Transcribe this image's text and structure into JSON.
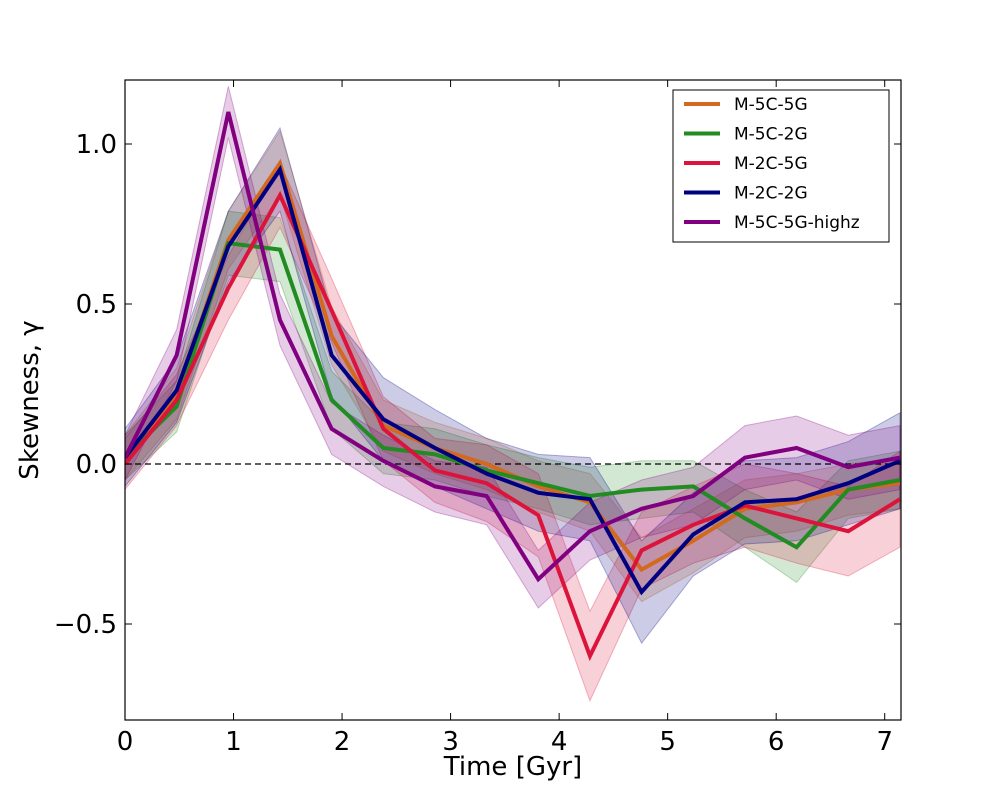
{
  "chart_data": {
    "type": "line",
    "title": "",
    "xlabel": "Time [Gyr]",
    "ylabel": "Skewness, γ",
    "xlim": [
      0,
      7.15
    ],
    "ylim": [
      -0.8,
      1.2
    ],
    "xticks": [
      0,
      1,
      2,
      3,
      4,
      5,
      6,
      7
    ],
    "xtick_labels": [
      "0",
      "1",
      "2",
      "3",
      "4",
      "5",
      "6",
      "7"
    ],
    "yticks": [
      -0.5,
      0.0,
      0.5,
      1.0
    ],
    "ytick_labels": [
      "−0.5",
      "0.0",
      "0.5",
      "1.0"
    ],
    "reference_line": {
      "y": 0.0,
      "style": "dashed"
    },
    "grid": false,
    "legend_position": "top-right",
    "x": [
      0.0,
      0.476,
      0.952,
      1.428,
      1.904,
      2.38,
      2.856,
      3.332,
      3.808,
      4.284,
      4.76,
      5.236,
      5.712,
      6.188,
      6.664,
      7.14
    ],
    "series": [
      {
        "name": "M-5C-5G",
        "color": "#d2691e",
        "values": [
          0.02,
          0.22,
          0.7,
          0.94,
          0.4,
          0.12,
          0.05,
          0.0,
          -0.07,
          -0.12,
          -0.33,
          -0.24,
          -0.14,
          -0.12,
          -0.08,
          -0.06
        ],
        "band": [
          0.07,
          0.08,
          0.09,
          0.1,
          0.09,
          0.08,
          0.08,
          0.08,
          0.08,
          0.09,
          0.1,
          0.1,
          0.09,
          0.09,
          0.08,
          0.08
        ]
      },
      {
        "name": "M-5C-2G",
        "color": "#228b22",
        "values": [
          0.02,
          0.18,
          0.69,
          0.67,
          0.2,
          0.05,
          0.03,
          -0.02,
          -0.06,
          -0.1,
          -0.08,
          -0.07,
          -0.17,
          -0.26,
          -0.08,
          -0.05
        ],
        "band": [
          0.07,
          0.08,
          0.1,
          0.1,
          0.09,
          0.08,
          0.08,
          0.08,
          0.08,
          0.09,
          0.09,
          0.08,
          0.09,
          0.11,
          0.09,
          0.09
        ]
      },
      {
        "name": "M-2C-5G",
        "color": "#dc143c",
        "values": [
          0.0,
          0.2,
          0.55,
          0.84,
          0.48,
          0.11,
          -0.02,
          -0.06,
          -0.16,
          -0.6,
          -0.27,
          -0.19,
          -0.13,
          -0.17,
          -0.21,
          -0.11
        ],
        "band": [
          0.08,
          0.08,
          0.1,
          0.1,
          0.1,
          0.1,
          0.1,
          0.12,
          0.13,
          0.14,
          0.12,
          0.12,
          0.13,
          0.14,
          0.14,
          0.15
        ]
      },
      {
        "name": "M-2C-2G",
        "color": "#000080",
        "values": [
          0.02,
          0.23,
          0.68,
          0.92,
          0.34,
          0.14,
          0.05,
          -0.03,
          -0.09,
          -0.11,
          -0.4,
          -0.22,
          -0.12,
          -0.11,
          -0.06,
          0.01
        ],
        "band": [
          0.09,
          0.1,
          0.11,
          0.13,
          0.13,
          0.13,
          0.12,
          0.11,
          0.12,
          0.13,
          0.16,
          0.13,
          0.13,
          0.13,
          0.13,
          0.15
        ]
      },
      {
        "name": "M-5C-5G-highz",
        "color": "#800080",
        "values": [
          0.02,
          0.34,
          1.1,
          0.45,
          0.11,
          0.01,
          -0.07,
          -0.1,
          -0.36,
          -0.21,
          -0.14,
          -0.1,
          0.02,
          0.05,
          -0.01,
          0.02
        ],
        "band": [
          0.07,
          0.08,
          0.08,
          0.08,
          0.08,
          0.08,
          0.08,
          0.09,
          0.09,
          0.09,
          0.09,
          0.09,
          0.1,
          0.1,
          0.1,
          0.1
        ]
      }
    ]
  }
}
